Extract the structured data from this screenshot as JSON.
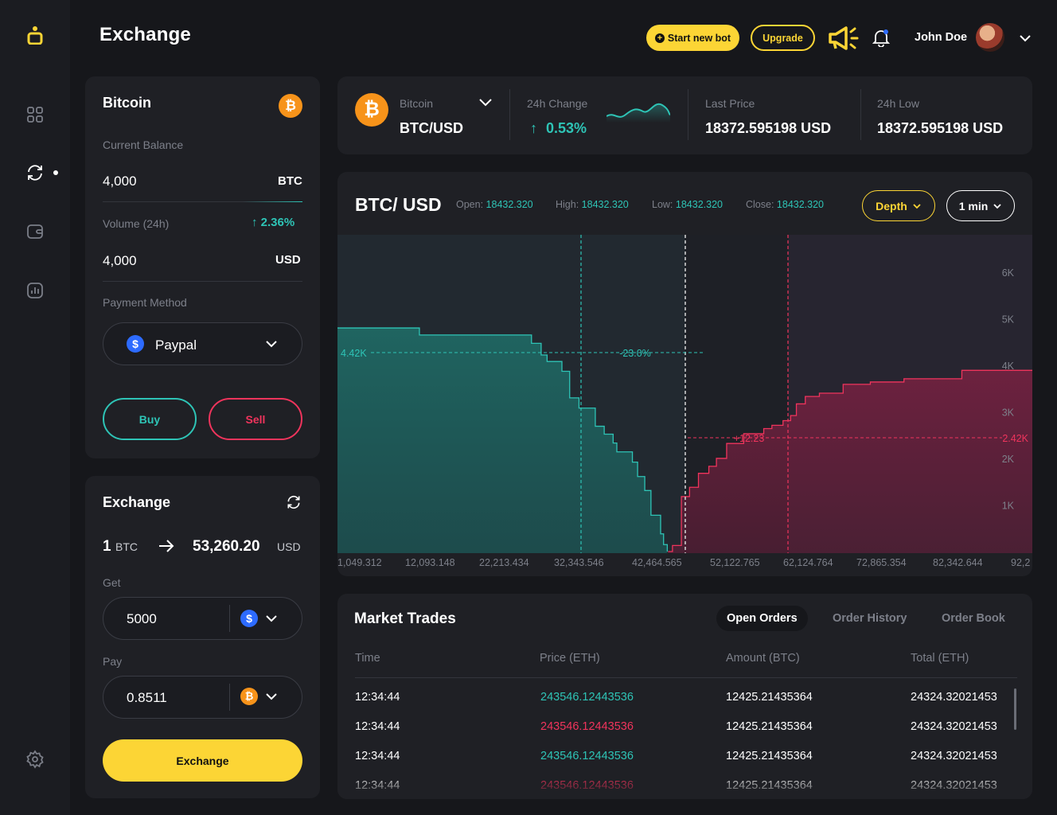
{
  "app": {
    "title": "Exchange"
  },
  "header": {
    "start_bot": "Start new bot",
    "upgrade": "Upgrade",
    "user_name": "John Doe"
  },
  "balance_card": {
    "coin_name": "Bitcoin",
    "current_balance_label": "Current Balance",
    "balance_value": "4,000",
    "balance_unit": "BTC",
    "volume_label": "Volume (24h)",
    "volume_change": "2.36%",
    "volume_value": "4,000",
    "volume_unit": "USD",
    "payment_label": "Payment Method",
    "payment_value": "Paypal",
    "buy": "Buy",
    "sell": "Sell"
  },
  "exchange_card": {
    "title": "Exchange",
    "from_amount": "1",
    "from_unit": "BTC",
    "to_amount": "53,260.20",
    "to_unit": "USD",
    "get_label": "Get",
    "get_value": "5000",
    "pay_label": "Pay",
    "pay_value": "0.8511",
    "exchange_btn": "Exchange"
  },
  "ticker": {
    "coin": "Bitcoin",
    "pair": "BTC/USD",
    "change_label": "24h Change",
    "change_value": "0.53%",
    "last_label": "Last Price",
    "last_value": "18372.595198 USD",
    "low_label": "24h Low",
    "low_value": "18372.595198 USD"
  },
  "depth_chart": {
    "title": "BTC/ USD",
    "open_label": "Open:",
    "open": "18432.320",
    "high_label": "High:",
    "high": "18432.320",
    "low_label": "Low:",
    "low": "18432.320",
    "close_label": "Close:",
    "close": "18432.320",
    "mode": "Depth",
    "interval": "1 min"
  },
  "chart_data": {
    "type": "area",
    "x_ticks": [
      "1,049.312",
      "12,093.148",
      "22,213.434",
      "32,343.546",
      "42,464.565",
      "52,122.765",
      "62,124.764",
      "72,865.354",
      "82,342.644",
      "92,2"
    ],
    "y_ticks": [
      "6K",
      "5K",
      "4K",
      "3K",
      "2K",
      "1K"
    ],
    "ylim": [
      0,
      6800
    ],
    "xlim": [
      1049.312,
      94700
    ],
    "annotations": {
      "bid_level": "4.42K",
      "bid_pct": "-23.0%",
      "ask_level": "2.42K",
      "ask_delta": "+12.23"
    },
    "series": [
      {
        "side": "bid",
        "x": [
          1049.312,
          12000,
          12093.148,
          26500,
          27200,
          28500,
          29300,
          31300,
          32343.546,
          33600,
          35800,
          37000,
          38200,
          38700,
          40800,
          41500,
          42464.565,
          43300,
          44600,
          45000,
          45500
        ],
        "y": [
          4800,
          4800,
          4650,
          4650,
          4470,
          4220,
          4080,
          3870,
          3300,
          3080,
          2690,
          2520,
          2330,
          2140,
          1920,
          1610,
          1310,
          780,
          380,
          150,
          0
        ]
      },
      {
        "side": "ask",
        "x": [
          45600,
          46200,
          47400,
          48500,
          49700,
          51100,
          52122.765,
          53500,
          55800,
          58500,
          59600,
          61100,
          62124.764,
          62900,
          64100,
          66000,
          69200,
          72865.354,
          77400,
          85200,
          94700
        ],
        "y": [
          0,
          130,
          1180,
          1380,
          1680,
          1830,
          2000,
          2320,
          2530,
          2640,
          2710,
          2810,
          2920,
          3170,
          3330,
          3400,
          3590,
          3640,
          3710,
          3890,
          3890
        ]
      }
    ]
  },
  "market_trades": {
    "title": "Market Trades",
    "tabs": [
      "Open Orders",
      "Order History",
      "Order Book"
    ],
    "columns": [
      "Time",
      "Price (ETH)",
      "Amount (BTC)",
      "Total (ETH)"
    ],
    "rows": [
      {
        "time": "12:34:44",
        "price": "243546.12443536",
        "side": "buy",
        "amount": "12425.21435364",
        "total": "24324.32021453"
      },
      {
        "time": "12:34:44",
        "price": "243546.12443536",
        "side": "sell",
        "amount": "12425.21435364",
        "total": "24324.32021453"
      },
      {
        "time": "12:34:44",
        "price": "243546.12443536",
        "side": "buy",
        "amount": "12425.21435364",
        "total": "24324.32021453"
      },
      {
        "time": "12:34:44",
        "price": "243546.12443536",
        "side": "sell",
        "amount": "12425.21435364",
        "total": "24324.32021453"
      }
    ]
  }
}
